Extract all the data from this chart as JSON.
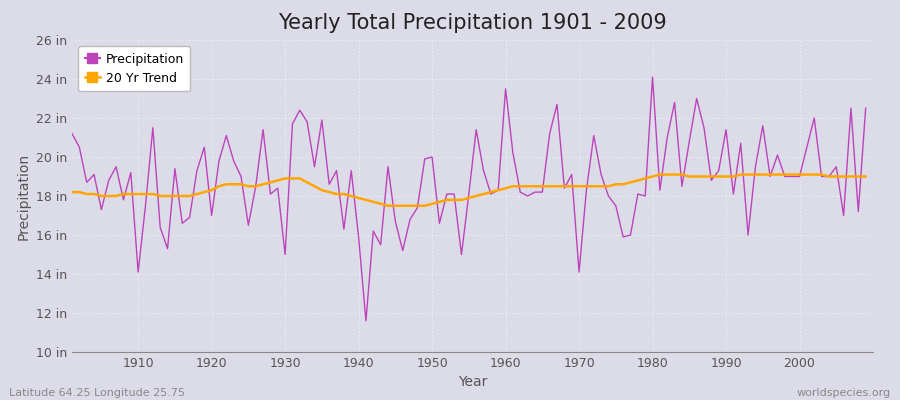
{
  "title": "Yearly Total Precipitation 1901 - 2009",
  "xlabel": "Year",
  "ylabel": "Precipitation",
  "subtitle_left": "Latitude 64.25 Longitude 25.75",
  "subtitle_right": "worldspecies.org",
  "years": [
    1901,
    1902,
    1903,
    1904,
    1905,
    1906,
    1907,
    1908,
    1909,
    1910,
    1911,
    1912,
    1913,
    1914,
    1915,
    1916,
    1917,
    1918,
    1919,
    1920,
    1921,
    1922,
    1923,
    1924,
    1925,
    1926,
    1927,
    1928,
    1929,
    1930,
    1931,
    1932,
    1933,
    1934,
    1935,
    1936,
    1937,
    1938,
    1939,
    1940,
    1941,
    1942,
    1943,
    1944,
    1945,
    1946,
    1947,
    1948,
    1949,
    1950,
    1951,
    1952,
    1953,
    1954,
    1955,
    1956,
    1957,
    1958,
    1959,
    1960,
    1961,
    1962,
    1963,
    1964,
    1965,
    1966,
    1967,
    1968,
    1969,
    1970,
    1971,
    1972,
    1973,
    1974,
    1975,
    1976,
    1977,
    1978,
    1979,
    1980,
    1981,
    1982,
    1983,
    1984,
    1985,
    1986,
    1987,
    1988,
    1989,
    1990,
    1991,
    1992,
    1993,
    1994,
    1995,
    1996,
    1997,
    1998,
    1999,
    2000,
    2001,
    2002,
    2003,
    2004,
    2005,
    2006,
    2007,
    2008,
    2009
  ],
  "precip": [
    21.2,
    20.5,
    18.7,
    19.1,
    17.3,
    18.8,
    19.5,
    17.8,
    19.2,
    14.1,
    17.5,
    21.5,
    16.4,
    15.3,
    19.4,
    16.6,
    16.9,
    19.3,
    20.5,
    17.0,
    19.8,
    21.1,
    19.8,
    19.0,
    16.5,
    18.5,
    21.4,
    18.1,
    18.4,
    15.0,
    21.7,
    22.4,
    21.8,
    19.5,
    21.9,
    18.6,
    19.3,
    16.3,
    19.3,
    15.9,
    11.6,
    16.2,
    15.5,
    19.5,
    16.7,
    15.2,
    16.8,
    17.4,
    19.9,
    20.0,
    16.6,
    18.1,
    18.1,
    15.0,
    18.1,
    21.4,
    19.3,
    18.1,
    18.3,
    23.5,
    20.2,
    18.2,
    18.0,
    18.2,
    18.2,
    21.2,
    22.7,
    18.4,
    19.1,
    14.1,
    18.3,
    21.1,
    19.1,
    18.0,
    17.5,
    15.9,
    16.0,
    18.1,
    18.0,
    24.1,
    18.3,
    21.0,
    22.8,
    18.5,
    20.8,
    23.0,
    21.5,
    18.8,
    19.3,
    21.4,
    18.1,
    20.7,
    16.0,
    19.5,
    21.6,
    19.0,
    20.1,
    19.0,
    19.0,
    19.0,
    20.5,
    22.0,
    19.0,
    19.0,
    19.5,
    17.0,
    22.5,
    17.2,
    22.5
  ],
  "trend": [
    18.2,
    18.2,
    18.1,
    18.1,
    18.0,
    18.0,
    18.0,
    18.1,
    18.1,
    18.1,
    18.1,
    18.1,
    18.0,
    18.0,
    18.0,
    18.0,
    18.0,
    18.1,
    18.2,
    18.3,
    18.5,
    18.6,
    18.6,
    18.6,
    18.5,
    18.5,
    18.6,
    18.7,
    18.8,
    18.9,
    18.9,
    18.9,
    18.7,
    18.5,
    18.3,
    18.2,
    18.1,
    18.1,
    18.0,
    17.9,
    17.8,
    17.7,
    17.6,
    17.5,
    17.5,
    17.5,
    17.5,
    17.5,
    17.5,
    17.6,
    17.7,
    17.8,
    17.8,
    17.8,
    17.9,
    18.0,
    18.1,
    18.2,
    18.3,
    18.4,
    18.5,
    18.5,
    18.5,
    18.5,
    18.5,
    18.5,
    18.5,
    18.5,
    18.5,
    18.5,
    18.5,
    18.5,
    18.5,
    18.5,
    18.6,
    18.6,
    18.7,
    18.8,
    18.9,
    19.0,
    19.1,
    19.1,
    19.1,
    19.1,
    19.0,
    19.0,
    19.0,
    19.0,
    19.0,
    19.0,
    19.0,
    19.1,
    19.1,
    19.1,
    19.1,
    19.1,
    19.1,
    19.1,
    19.1,
    19.1,
    19.1,
    19.1,
    19.1,
    19.0,
    19.0,
    19.0,
    19.0,
    19.0,
    19.0
  ],
  "precip_color": "#BB44BB",
  "trend_color": "#FFA500",
  "background_color": "#DCDCE8",
  "plot_background": "#DCDCE8",
  "grid_color": "#FFFFFF",
  "ylim": [
    10,
    26
  ],
  "yticks": [
    10,
    12,
    14,
    16,
    18,
    20,
    22,
    24,
    26
  ],
  "ytick_labels": [
    "10 in",
    "12 in",
    "14 in",
    "16 in",
    "18 in",
    "20 in",
    "22 in",
    "24 in",
    "26 in"
  ],
  "xticks": [
    1910,
    1920,
    1930,
    1940,
    1950,
    1960,
    1970,
    1980,
    1990,
    2000
  ],
  "title_fontsize": 15,
  "axis_label_fontsize": 10,
  "tick_fontsize": 9,
  "legend_fontsize": 9
}
